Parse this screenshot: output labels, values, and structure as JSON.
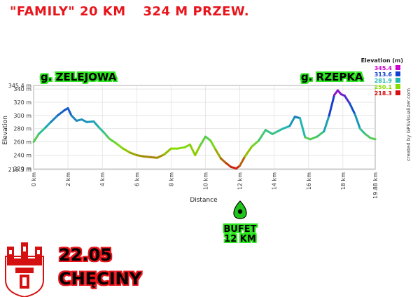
{
  "header": {
    "route_name": "\"FAMILY\" 20 KM",
    "elevation_gain": "324 M PRZEW."
  },
  "peaks": {
    "left": "g. ZELEJOWA",
    "right": "g. RZEPKA"
  },
  "aid_station": {
    "line1": "BUFET",
    "line2": "12 KM"
  },
  "event": {
    "date": "22.05",
    "place": "CHĘCINY"
  },
  "credit": "created by GPSVisualizer.com",
  "colors": {
    "headline_red": "#e8141b",
    "label_green": "#2ce51f",
    "marker_green": "#21c41a"
  },
  "chart_data": {
    "type": "line",
    "xlabel": "Distance",
    "ylabel": "Elevation",
    "x_ticks": [
      "0 km",
      "2 km",
      "4 km",
      "6 km",
      "8 km",
      "10 km",
      "12 km",
      "14 km",
      "16 km",
      "18 km",
      "19.88 km"
    ],
    "y_ticks": [
      "345.4 m",
      "340 m",
      "320 m",
      "300 m",
      "280 m",
      "260 m",
      "240 m",
      "220 m",
      "218.3 m"
    ],
    "xlim": [
      0,
      19.88
    ],
    "ylim": [
      218.3,
      345.4
    ],
    "grid": true,
    "legend": {
      "title": "Elevation (m)",
      "placement": "top-right",
      "entries": [
        {
          "label": "345.4",
          "color": "#cc00cc"
        },
        {
          "label": "313.6",
          "color": "#1040d0"
        },
        {
          "label": "281.9",
          "color": "#20b8b0"
        },
        {
          "label": "250.1",
          "color": "#88dd00"
        },
        {
          "label": "218.3",
          "color": "#d41010"
        }
      ]
    },
    "series": [
      {
        "x": [
          0,
          0.3,
          0.7,
          1.0,
          1.4,
          1.8,
          2.0,
          2.2,
          2.5,
          2.8,
          3.1,
          3.5,
          3.8,
          4.1,
          4.4,
          4.8,
          5.2,
          5.6,
          6.0,
          6.4,
          6.8,
          7.2,
          7.6,
          8.0,
          8.4,
          8.8,
          9.1,
          9.4,
          9.7,
          10.0,
          10.3,
          10.6,
          10.9,
          11.2,
          11.5,
          11.8,
          12.0,
          12.3,
          12.7,
          13.1,
          13.5,
          13.9,
          14.2,
          14.5,
          14.9,
          15.2,
          15.5,
          15.8,
          16.1,
          16.5,
          16.9,
          17.2,
          17.5,
          17.7,
          17.9,
          18.1,
          18.4,
          18.7,
          19.0,
          19.3,
          19.6,
          19.88
        ],
        "y": [
          260,
          272,
          282,
          290,
          300,
          308,
          311,
          300,
          292,
          294,
          290,
          291,
          282,
          274,
          265,
          258,
          250,
          244,
          240,
          238,
          237,
          236,
          241,
          250,
          250,
          252,
          256,
          240,
          255,
          268,
          262,
          248,
          235,
          228,
          222,
          220,
          224,
          238,
          253,
          262,
          278,
          272,
          276,
          280,
          284,
          298,
          296,
          267,
          264,
          268,
          276,
          300,
          331,
          338,
          332,
          330,
          318,
          302,
          280,
          272,
          266,
          264
        ]
      }
    ]
  }
}
